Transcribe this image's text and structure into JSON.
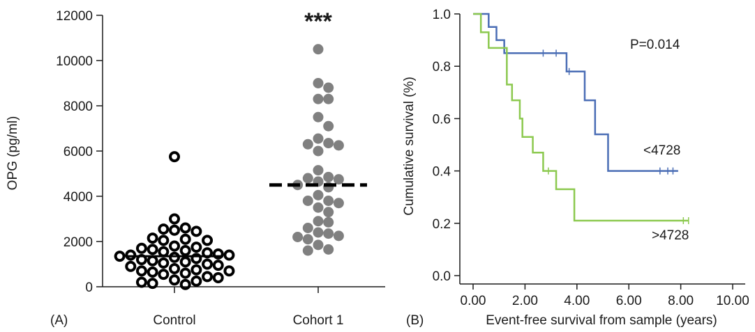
{
  "panel_a": {
    "label": "(A)",
    "ylabel": "OPG (pg/ml)",
    "yticks": [
      0,
      2000,
      4000,
      6000,
      8000,
      10000,
      12000
    ],
    "significance": "***"
  },
  "panel_b": {
    "label": "(B)",
    "ylabel": "Cumulative survival (%)",
    "xlabel": "Event-free survival from sample (years)",
    "xticks": [
      "0.00",
      "2.00",
      "4.00",
      "6.00",
      "8.00",
      "10.00"
    ],
    "yticks": [
      "0.0",
      "0.2",
      "0.4",
      "0.6",
      "0.8",
      "1.0"
    ],
    "p_value": "P=0.014"
  },
  "chart_data": [
    {
      "type": "scatter",
      "ylabel": "OPG (pg/ml)",
      "ylim": [
        0,
        12000
      ],
      "categories": [
        "Control",
        "Cohort 1"
      ],
      "series": [
        {
          "category": "Control",
          "marker": "open-circle",
          "color": "#000000",
          "values": [
            5750,
            3000,
            2600,
            2550,
            2500,
            2450,
            2150,
            2100,
            2050,
            2050,
            1800,
            1750,
            1700,
            1650,
            1600,
            1550,
            1500,
            1450,
            1400,
            1400,
            1350,
            1300,
            1250,
            1200,
            1150,
            1100,
            1050,
            1000,
            950,
            900,
            800,
            750,
            700,
            700,
            650,
            600,
            550,
            450,
            400,
            300,
            250,
            200,
            150,
            100
          ],
          "median": 1350
        },
        {
          "category": "Cohort 1",
          "marker": "filled-circle",
          "color": "#808080",
          "values": [
            10500,
            9000,
            8800,
            8300,
            8300,
            7500,
            7100,
            6550,
            6350,
            6300,
            6250,
            6000,
            5150,
            4850,
            4800,
            4750,
            4650,
            4500,
            4400,
            4050,
            3800,
            3800,
            3700,
            3500,
            3300,
            2900,
            2850,
            2600,
            2400,
            2350,
            2250,
            2200,
            2100,
            1850,
            1650,
            1600
          ],
          "median": 4500
        }
      ]
    },
    {
      "type": "line",
      "subtype": "kaplan-meier",
      "xlabel": "Event-free survival from sample (years)",
      "ylabel": "Cumulative survival (%)",
      "xlim": [
        0,
        10
      ],
      "ylim": [
        0,
        1
      ],
      "annotation": "P=0.014",
      "series": [
        {
          "name": "<4728",
          "color": "#4a6db5",
          "steps": [
            [
              0,
              1.0
            ],
            [
              0.6,
              0.95
            ],
            [
              0.9,
              0.9
            ],
            [
              1.2,
              0.85
            ],
            [
              3.6,
              0.78
            ],
            [
              4.3,
              0.67
            ],
            [
              4.7,
              0.54
            ],
            [
              5.2,
              0.4
            ],
            [
              7.9,
              0.4
            ]
          ],
          "censored": [
            [
              2.7,
              0.85
            ],
            [
              3.2,
              0.85
            ],
            [
              3.7,
              0.78
            ],
            [
              7.2,
              0.4
            ],
            [
              7.5,
              0.4
            ],
            [
              7.7,
              0.4
            ]
          ]
        },
        {
          "name": ">4728",
          "color": "#8cc94f",
          "steps": [
            [
              0,
              1.0
            ],
            [
              0.3,
              0.93
            ],
            [
              0.6,
              0.87
            ],
            [
              1.3,
              0.73
            ],
            [
              1.5,
              0.67
            ],
            [
              1.8,
              0.6
            ],
            [
              1.9,
              0.53
            ],
            [
              2.3,
              0.47
            ],
            [
              2.7,
              0.4
            ],
            [
              3.2,
              0.33
            ],
            [
              3.9,
              0.21
            ],
            [
              8.3,
              0.21
            ]
          ],
          "censored": [
            [
              2.9,
              0.4
            ],
            [
              8.1,
              0.21
            ],
            [
              8.3,
              0.21
            ]
          ]
        }
      ]
    }
  ]
}
